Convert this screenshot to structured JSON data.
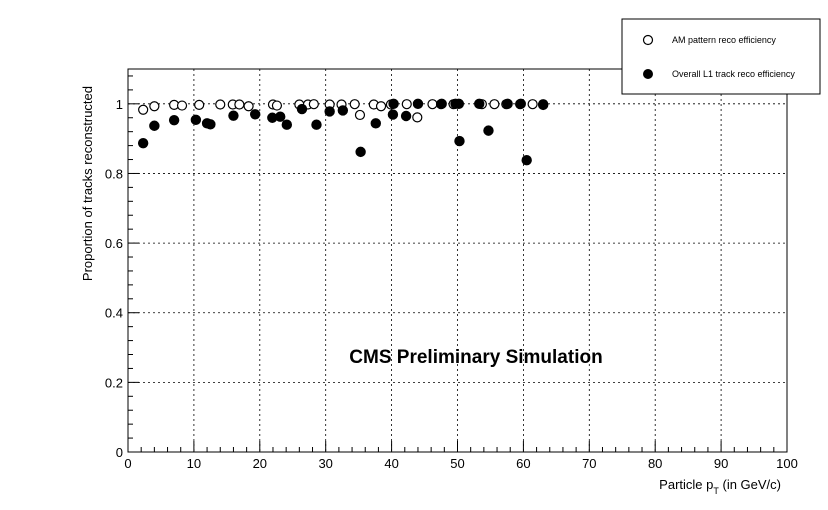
{
  "chart_data": {
    "type": "scatter",
    "xlabel_main": "Particle p",
    "xlabel_sub": "T",
    "xlabel_tail": " (in GeV/c)",
    "ylabel": "Proportion of tracks reconstructed",
    "annotation": "CMS Preliminary Simulation",
    "xlim": [
      0,
      100
    ],
    "ylim": [
      0,
      1.1
    ],
    "x_ticks": [
      0,
      10,
      20,
      30,
      40,
      50,
      60,
      70,
      80,
      90,
      100
    ],
    "y_ticks": [
      0,
      0.2,
      0.4,
      0.6,
      0.8,
      1
    ],
    "grid": true,
    "legend_position": "top-right",
    "series": [
      {
        "name": "AM pattern reco efficiency",
        "marker": "open-circle",
        "color": "#000000",
        "points": [
          [
            2.3,
            0.983
          ],
          [
            4.0,
            0.993
          ],
          [
            7.0,
            0.997
          ],
          [
            8.2,
            0.995
          ],
          [
            10.8,
            0.997
          ],
          [
            14.0,
            0.998
          ],
          [
            15.9,
            0.998
          ],
          [
            16.9,
            0.998
          ],
          [
            18.3,
            0.993
          ],
          [
            22.0,
            0.998
          ],
          [
            22.6,
            0.995
          ],
          [
            26.0,
            0.998
          ],
          [
            27.3,
            0.998
          ],
          [
            28.2,
            0.999
          ],
          [
            30.6,
            0.998
          ],
          [
            32.4,
            0.998
          ],
          [
            34.4,
            0.999
          ],
          [
            35.2,
            0.968
          ],
          [
            37.3,
            0.998
          ],
          [
            38.4,
            0.993
          ],
          [
            39.9,
            0.998
          ],
          [
            42.3,
            0.999
          ],
          [
            43.9,
            0.961
          ],
          [
            46.2,
            0.999
          ],
          [
            47.5,
            0.999
          ],
          [
            49.4,
            0.999
          ],
          [
            53.7,
            0.999
          ],
          [
            55.6,
            0.999
          ],
          [
            57.4,
            0.999
          ],
          [
            59.5,
            0.999
          ],
          [
            61.4,
            0.999
          ],
          [
            63.0,
            0.999
          ]
        ]
      },
      {
        "name": "Overall L1 track reco efficiency",
        "marker": "filled-circle",
        "color": "#000000",
        "points": [
          [
            2.3,
            0.887
          ],
          [
            4.0,
            0.937
          ],
          [
            7.0,
            0.953
          ],
          [
            10.3,
            0.954
          ],
          [
            12.0,
            0.944
          ],
          [
            12.5,
            0.941
          ],
          [
            16.0,
            0.966
          ],
          [
            19.3,
            0.97
          ],
          [
            21.9,
            0.96
          ],
          [
            23.1,
            0.963
          ],
          [
            24.1,
            0.94
          ],
          [
            26.4,
            0.985
          ],
          [
            28.6,
            0.94
          ],
          [
            30.6,
            0.978
          ],
          [
            32.6,
            0.981
          ],
          [
            35.3,
            0.862
          ],
          [
            37.6,
            0.944
          ],
          [
            40.2,
            0.969
          ],
          [
            40.3,
            1.0
          ],
          [
            42.2,
            0.965
          ],
          [
            44.0,
            1.0
          ],
          [
            47.6,
            1.0
          ],
          [
            49.7,
            1.0
          ],
          [
            50.2,
            1.0
          ],
          [
            50.3,
            0.893
          ],
          [
            53.3,
            1.0
          ],
          [
            54.7,
            0.923
          ],
          [
            57.6,
            1.0
          ],
          [
            59.6,
            1.0
          ],
          [
            60.5,
            0.838
          ],
          [
            63.0,
            0.997
          ]
        ]
      }
    ]
  }
}
